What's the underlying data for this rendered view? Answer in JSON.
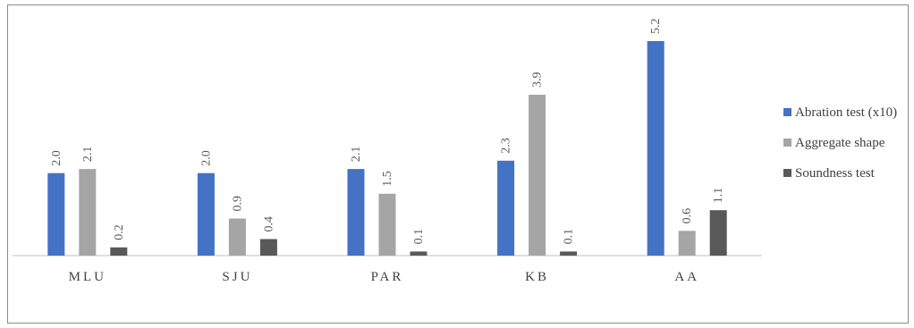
{
  "chart_data": {
    "type": "bar",
    "categories": [
      "MLU",
      "SJU",
      "PAR",
      "KB",
      "AA"
    ],
    "series": [
      {
        "name": "Abration test (x10)",
        "values": [
          2.0,
          2.0,
          2.1,
          2.3,
          5.2
        ],
        "labels": [
          "2.0",
          "2.0",
          "2.1",
          "2.3",
          "5.2"
        ],
        "color": "#4472c4"
      },
      {
        "name": "Aggregate shape",
        "values": [
          2.1,
          0.9,
          1.5,
          3.9,
          0.6
        ],
        "labels": [
          "2.1",
          "0.9",
          "1.5",
          "3.9",
          "0.6"
        ],
        "color": "#a5a5a5"
      },
      {
        "name": "Soundness test",
        "values": [
          0.2,
          0.4,
          0.1,
          0.1,
          1.1
        ],
        "labels": [
          "0.2",
          "0.4",
          "0.1",
          "0.1",
          "1.1"
        ],
        "color": "#595959"
      }
    ],
    "ylim": [
      0,
      5.2
    ],
    "grid": false,
    "legend": "right",
    "data_labels": true,
    "data_label_rotation": "vertical"
  }
}
